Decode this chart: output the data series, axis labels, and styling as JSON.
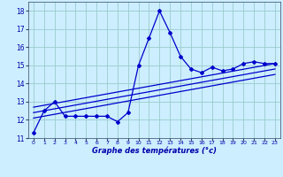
{
  "xlabel": "Graphe des températures (°c)",
  "background_color": "#cceeff",
  "grid_color": "#99cccc",
  "line_color": "#0000cc",
  "ylim": [
    11,
    18.5
  ],
  "xlim": [
    -0.5,
    23.5
  ],
  "yticks": [
    11,
    12,
    13,
    14,
    15,
    16,
    17,
    18
  ],
  "xticks": [
    0,
    1,
    2,
    3,
    4,
    5,
    6,
    7,
    8,
    9,
    10,
    11,
    12,
    13,
    14,
    15,
    16,
    17,
    18,
    19,
    20,
    21,
    22,
    23
  ],
  "data_x": [
    0,
    1,
    2,
    3,
    4,
    5,
    6,
    7,
    8,
    9,
    10,
    11,
    12,
    13,
    14,
    15,
    16,
    17,
    18,
    19,
    20,
    21,
    22,
    23
  ],
  "data_y": [
    11.3,
    12.5,
    13.0,
    12.2,
    12.2,
    12.2,
    12.2,
    12.2,
    11.9,
    12.4,
    15.0,
    16.5,
    18.0,
    16.8,
    15.5,
    14.8,
    14.6,
    14.9,
    14.7,
    14.8,
    15.1,
    15.2,
    15.1,
    15.1
  ],
  "reg1_y_start": 12.1,
  "reg1_y_end": 14.5,
  "reg2_y_start": 12.4,
  "reg2_y_end": 14.8,
  "reg3_y_start": 12.7,
  "reg3_y_end": 15.1,
  "xtick_fontsize": 4.5,
  "ytick_fontsize": 5.5,
  "xlabel_fontsize": 6.0
}
